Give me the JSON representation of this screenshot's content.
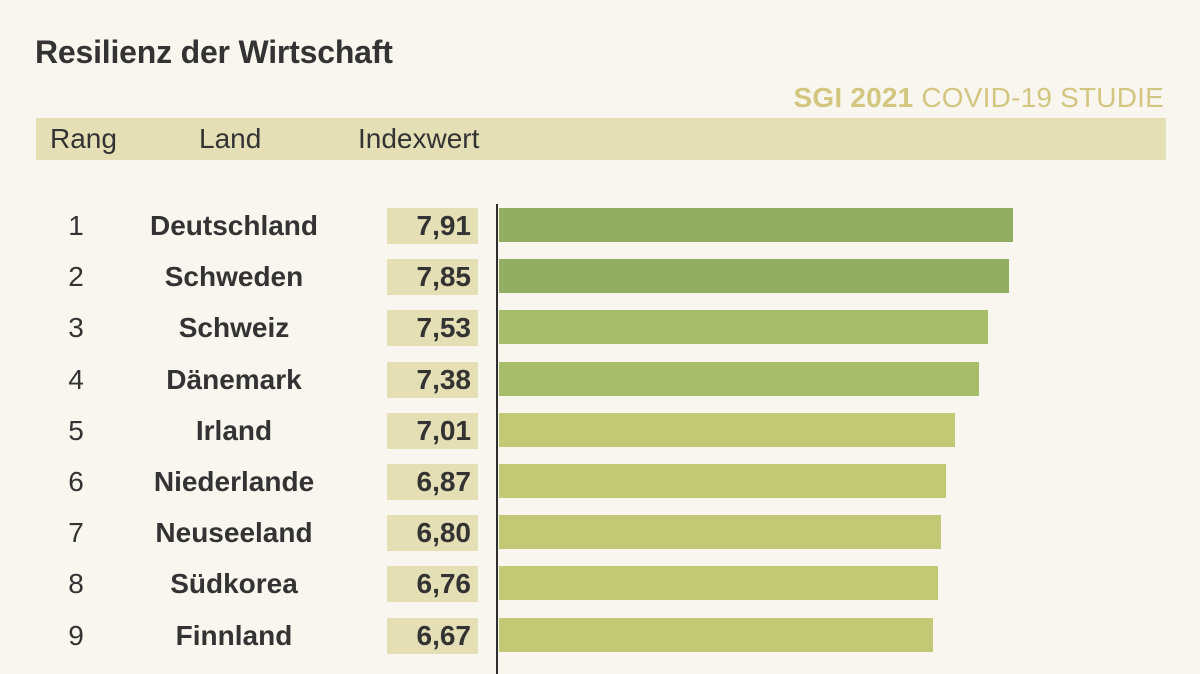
{
  "title": "Resilienz der Wirtschaft",
  "study": {
    "bold": "SGI 2021",
    "rest": "COVID-19 STUDIE"
  },
  "header": {
    "rang": "Rang",
    "land": "Land",
    "index": "Indexwert"
  },
  "colors": {
    "bar_dark": "#93ad62",
    "bar_mid": "#a7bd6a",
    "bar_light": "#c2c874",
    "header_bg": "#e5dfb5",
    "study_text": "#d3c681",
    "background": "#f8f6ee"
  },
  "chart_data": {
    "type": "bar",
    "orientation": "horizontal",
    "title": "Resilienz der Wirtschaft",
    "xlim": [
      0,
      10
    ],
    "rows": [
      {
        "rank": "1",
        "country": "Deutschland",
        "value": 7.91,
        "label": "7,91"
      },
      {
        "rank": "2",
        "country": "Schweden",
        "value": 7.85,
        "label": "7,85"
      },
      {
        "rank": "3",
        "country": "Schweiz",
        "value": 7.53,
        "label": "7,53"
      },
      {
        "rank": "4",
        "country": "Dänemark",
        "value": 7.38,
        "label": "7,38"
      },
      {
        "rank": "5",
        "country": "Irland",
        "value": 7.01,
        "label": "7,01"
      },
      {
        "rank": "6",
        "country": "Niederlande",
        "value": 6.87,
        "label": "6,87"
      },
      {
        "rank": "7",
        "country": "Neuseeland",
        "value": 6.8,
        "label": "6,80"
      },
      {
        "rank": "8",
        "country": "Südkorea",
        "value": 6.76,
        "label": "6,76"
      },
      {
        "rank": "9",
        "country": "Finnland",
        "value": 6.67,
        "label": "6,67"
      }
    ]
  }
}
